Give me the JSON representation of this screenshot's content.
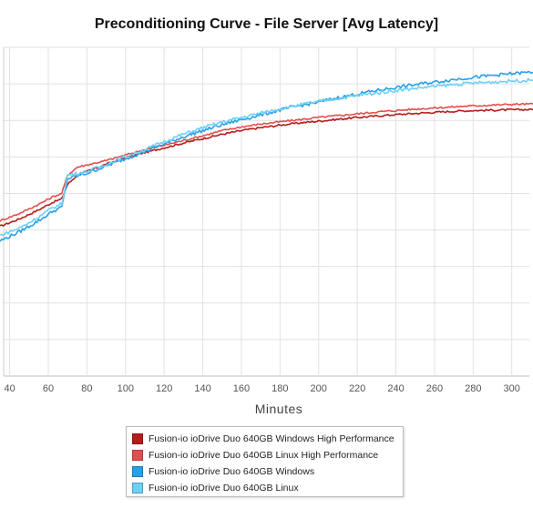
{
  "chart_data": {
    "type": "line",
    "title": "Preconditioning Curve - File Server [Avg Latency]",
    "xlabel": "Minutes",
    "ylabel": "",
    "x_ticks": [
      40,
      60,
      80,
      100,
      120,
      140,
      160,
      180,
      200,
      220,
      240,
      260,
      280,
      300
    ],
    "xlim": [
      35,
      311
    ],
    "ylim": [
      0,
      9
    ],
    "grid": true,
    "legend_position": "bottom",
    "series": [
      {
        "name": "Fusion-io ioDrive Duo 640GB Windows High Performance",
        "color": "#b71c1c",
        "x": [
          35,
          45,
          55,
          62,
          67,
          70,
          75,
          80,
          90,
          100,
          110,
          120,
          130,
          140,
          150,
          160,
          170,
          180,
          190,
          200,
          210,
          220,
          230,
          240,
          250,
          260,
          270,
          280,
          290,
          300,
          311
        ],
        "y": [
          4.1,
          4.3,
          4.55,
          4.75,
          4.85,
          5.25,
          5.5,
          5.6,
          5.8,
          5.98,
          6.12,
          6.25,
          6.38,
          6.5,
          6.62,
          6.72,
          6.8,
          6.87,
          6.93,
          6.98,
          7.03,
          7.08,
          7.12,
          7.16,
          7.19,
          7.22,
          7.25,
          7.27,
          7.28,
          7.29,
          7.3
        ]
      },
      {
        "name": "Fusion-io ioDrive Duo 640GB Linux High Performance",
        "color": "#e05050",
        "x": [
          35,
          45,
          55,
          62,
          67,
          70,
          75,
          80,
          90,
          100,
          110,
          120,
          130,
          140,
          150,
          160,
          170,
          180,
          190,
          200,
          210,
          220,
          230,
          240,
          250,
          260,
          270,
          280,
          290,
          300,
          311
        ],
        "y": [
          4.25,
          4.45,
          4.7,
          4.9,
          5.0,
          5.5,
          5.72,
          5.78,
          5.9,
          6.05,
          6.2,
          6.32,
          6.45,
          6.58,
          6.72,
          6.82,
          6.9,
          6.96,
          7.02,
          7.08,
          7.13,
          7.18,
          7.23,
          7.27,
          7.31,
          7.34,
          7.37,
          7.4,
          7.42,
          7.44,
          7.45
        ]
      },
      {
        "name": "Fusion-io ioDrive Duo 640GB Windows",
        "color": "#29a0e6",
        "x": [
          35,
          45,
          55,
          62,
          67,
          70,
          75,
          80,
          90,
          100,
          110,
          120,
          130,
          140,
          150,
          160,
          170,
          180,
          190,
          200,
          210,
          220,
          230,
          240,
          250,
          260,
          270,
          280,
          290,
          300,
          311
        ],
        "y": [
          3.7,
          3.95,
          4.25,
          4.5,
          4.62,
          5.4,
          5.48,
          5.55,
          5.75,
          5.95,
          6.15,
          6.35,
          6.55,
          6.72,
          6.88,
          7.02,
          7.15,
          7.28,
          7.4,
          7.5,
          7.62,
          7.72,
          7.82,
          7.9,
          7.98,
          8.05,
          8.12,
          8.18,
          8.23,
          8.28,
          8.32
        ]
      },
      {
        "name": "Fusion-io ioDrive Duo 640GB Linux",
        "color": "#6fd0f5",
        "x": [
          35,
          45,
          55,
          62,
          67,
          70,
          75,
          80,
          90,
          100,
          110,
          120,
          130,
          140,
          150,
          160,
          170,
          180,
          190,
          200,
          210,
          220,
          230,
          240,
          250,
          260,
          270,
          280,
          290,
          300,
          311
        ],
        "y": [
          3.85,
          4.05,
          4.35,
          4.6,
          4.72,
          5.5,
          5.55,
          5.6,
          5.8,
          6.0,
          6.2,
          6.42,
          6.62,
          6.8,
          6.95,
          7.08,
          7.2,
          7.32,
          7.42,
          7.52,
          7.6,
          7.68,
          7.75,
          7.82,
          7.88,
          7.93,
          7.98,
          8.02,
          8.05,
          8.08,
          8.1
        ]
      }
    ]
  }
}
